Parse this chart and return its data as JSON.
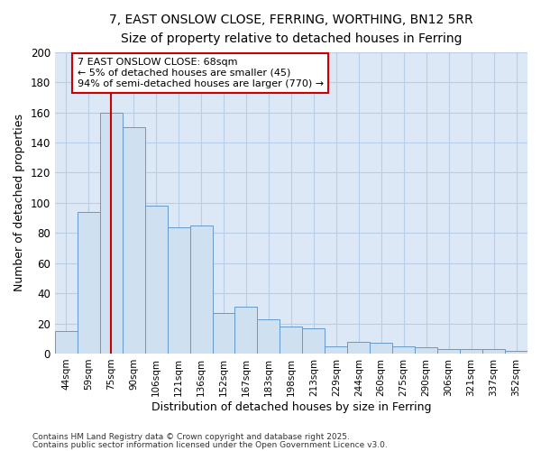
{
  "title_line1": "7, EAST ONSLOW CLOSE, FERRING, WORTHING, BN12 5RR",
  "title_line2": "Size of property relative to detached houses in Ferring",
  "xlabel": "Distribution of detached houses by size in Ferring",
  "ylabel": "Number of detached properties",
  "categories": [
    "44sqm",
    "59sqm",
    "75sqm",
    "90sqm",
    "106sqm",
    "121sqm",
    "136sqm",
    "152sqm",
    "167sqm",
    "183sqm",
    "198sqm",
    "213sqm",
    "229sqm",
    "244sqm",
    "260sqm",
    "275sqm",
    "290sqm",
    "306sqm",
    "321sqm",
    "337sqm",
    "352sqm"
  ],
  "values": [
    15,
    94,
    160,
    150,
    98,
    84,
    85,
    27,
    31,
    23,
    18,
    17,
    5,
    8,
    7,
    5,
    4,
    3,
    3,
    3,
    2
  ],
  "bar_color": "#cfe0f0",
  "bar_edge_color": "#6699cc",
  "vline_x_index": 2,
  "vline_color": "#cc0000",
  "annotation_text": "7 EAST ONSLOW CLOSE: 68sqm\n← 5% of detached houses are smaller (45)\n94% of semi-detached houses are larger (770) →",
  "annotation_box_color": "#ffffff",
  "annotation_box_edge": "#cc0000",
  "ylim": [
    0,
    200
  ],
  "yticks": [
    0,
    20,
    40,
    60,
    80,
    100,
    120,
    140,
    160,
    180,
    200
  ],
  "grid_color": "#b8cee8",
  "bg_color": "#dce8f5",
  "fig_bg_color": "#ffffff",
  "footer_line1": "Contains HM Land Registry data © Crown copyright and database right 2025.",
  "footer_line2": "Contains public sector information licensed under the Open Government Licence v3.0."
}
